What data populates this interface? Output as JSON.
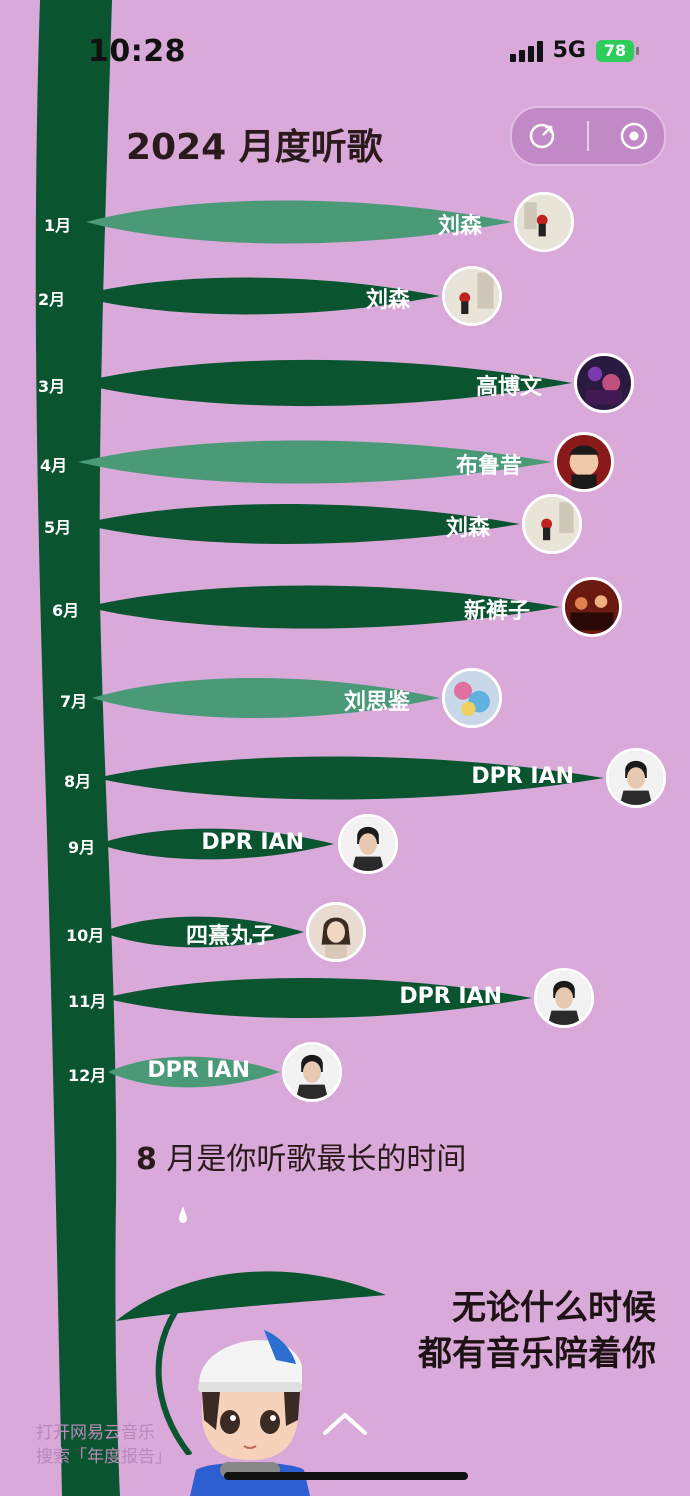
{
  "status_bar": {
    "time": "10:28",
    "network": "5G",
    "battery": "78"
  },
  "header": {
    "title": "2024 月度听歌"
  },
  "months": [
    {
      "month": "1月",
      "artist": "刘森"
    },
    {
      "month": "2月",
      "artist": "刘森"
    },
    {
      "month": "3月",
      "artist": "高博文"
    },
    {
      "month": "4月",
      "artist": "布鲁昔"
    },
    {
      "month": "5月",
      "artist": "刘森"
    },
    {
      "month": "6月",
      "artist": "新裤子"
    },
    {
      "month": "7月",
      "artist": "刘思鉴"
    },
    {
      "month": "8月",
      "artist": "DPR IAN"
    },
    {
      "month": "9月",
      "artist": "DPR IAN"
    },
    {
      "month": "10月",
      "artist": "四熹丸子"
    },
    {
      "month": "11月",
      "artist": "DPR IAN"
    },
    {
      "month": "12月",
      "artist": "DPR IAN"
    }
  ],
  "summary": {
    "highlight": "8",
    "text": " 月是你听歌最长的时间"
  },
  "closing": {
    "line1": "无论什么时候",
    "line2": "都有音乐陪着你"
  },
  "hint": {
    "line1": "打开网易云音乐",
    "line2": "搜索「年度报告」"
  },
  "colors": {
    "background": "#d8a9d9",
    "dark_leaf": "#0a5530",
    "light_leaf": "#4a9a78"
  }
}
